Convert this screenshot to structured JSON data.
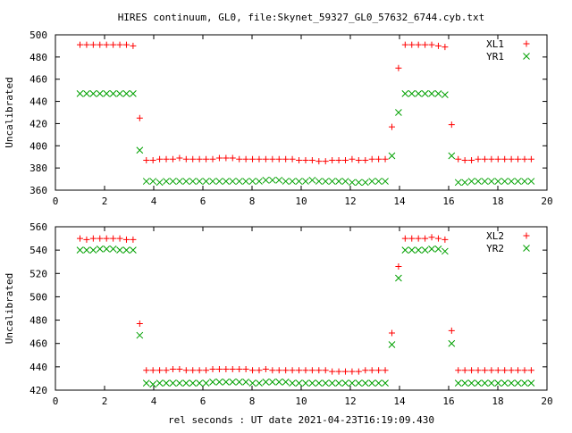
{
  "title": "HIRES continuum, GL0, file:Skynet_59327_GL0_57632_6744.cyb.txt",
  "xlabel": "rel seconds : UT date 2021-04-23T16:19:09.430",
  "chart_data": [
    {
      "type": "scatter",
      "ylabel": "Uncalibrated",
      "xlim": [
        0,
        20
      ],
      "ylim": [
        360,
        500
      ],
      "xticks": [
        0,
        2,
        4,
        6,
        8,
        10,
        12,
        14,
        16,
        18,
        20
      ],
      "yticks": [
        360,
        380,
        400,
        420,
        440,
        460,
        480,
        500
      ],
      "legend": "top-right",
      "x": [
        1.0,
        1.27,
        1.54,
        1.81,
        2.08,
        2.35,
        2.62,
        2.89,
        3.16,
        3.43,
        3.7,
        3.97,
        4.24,
        4.51,
        4.78,
        5.05,
        5.32,
        5.59,
        5.86,
        6.13,
        6.4,
        6.67,
        6.94,
        7.21,
        7.48,
        7.75,
        8.02,
        8.29,
        8.56,
        8.83,
        9.1,
        9.37,
        9.64,
        9.91,
        10.18,
        10.45,
        10.72,
        10.99,
        11.26,
        11.53,
        11.8,
        12.07,
        12.34,
        12.61,
        12.88,
        13.15,
        13.42,
        13.69,
        13.96,
        14.23,
        14.5,
        14.77,
        15.04,
        15.31,
        15.58,
        15.85,
        16.12,
        16.39,
        16.66,
        16.93,
        17.2,
        17.47,
        17.74,
        18.01,
        18.28,
        18.55,
        18.82,
        19.09,
        19.36
      ],
      "series": [
        {
          "name": "XL1",
          "color": "#ff0000",
          "marker": "plus",
          "values": [
            491,
            491,
            491,
            491,
            491,
            491,
            491,
            491,
            490,
            425,
            387,
            387,
            388,
            388,
            388,
            389,
            388,
            388,
            388,
            388,
            388,
            389,
            389,
            389,
            388,
            388,
            388,
            388,
            388,
            388,
            388,
            388,
            388,
            387,
            387,
            387,
            386,
            386,
            387,
            387,
            387,
            388,
            387,
            387,
            388,
            388,
            388,
            417,
            470,
            491,
            491,
            491,
            491,
            491,
            490,
            489,
            419,
            388,
            387,
            387,
            388,
            388,
            388,
            388,
            388,
            388,
            388,
            388,
            388
          ]
        },
        {
          "name": "YR1",
          "color": "#00a000",
          "marker": "cross",
          "values": [
            447,
            447,
            447,
            447,
            447,
            447,
            447,
            447,
            447,
            396,
            368,
            368,
            367,
            368,
            368,
            368,
            368,
            368,
            368,
            368,
            368,
            368,
            368,
            368,
            368,
            368,
            368,
            368,
            369,
            369,
            369,
            368,
            368,
            368,
            368,
            369,
            368,
            368,
            368,
            368,
            368,
            367,
            367,
            367,
            368,
            368,
            368,
            391,
            430,
            447,
            447,
            447,
            447,
            447,
            447,
            446,
            391,
            367,
            367,
            368,
            368,
            368,
            368,
            368,
            368,
            368,
            368,
            368,
            368
          ]
        }
      ]
    },
    {
      "type": "scatter",
      "ylabel": "Uncalibrated",
      "xlim": [
        0,
        20
      ],
      "ylim": [
        420,
        560
      ],
      "xticks": [
        0,
        2,
        4,
        6,
        8,
        10,
        12,
        14,
        16,
        18,
        20
      ],
      "yticks": [
        420,
        440,
        460,
        480,
        500,
        520,
        540,
        560
      ],
      "legend": "top-right",
      "x": [
        1.0,
        1.27,
        1.54,
        1.81,
        2.08,
        2.35,
        2.62,
        2.89,
        3.16,
        3.43,
        3.7,
        3.97,
        4.24,
        4.51,
        4.78,
        5.05,
        5.32,
        5.59,
        5.86,
        6.13,
        6.4,
        6.67,
        6.94,
        7.21,
        7.48,
        7.75,
        8.02,
        8.29,
        8.56,
        8.83,
        9.1,
        9.37,
        9.64,
        9.91,
        10.18,
        10.45,
        10.72,
        10.99,
        11.26,
        11.53,
        11.8,
        12.07,
        12.34,
        12.61,
        12.88,
        13.15,
        13.42,
        13.69,
        13.96,
        14.23,
        14.5,
        14.77,
        15.04,
        15.31,
        15.58,
        15.85,
        16.12,
        16.39,
        16.66,
        16.93,
        17.2,
        17.47,
        17.74,
        18.01,
        18.28,
        18.55,
        18.82,
        19.09,
        19.36
      ],
      "series": [
        {
          "name": "XL2",
          "color": "#ff0000",
          "marker": "plus",
          "values": [
            550,
            549,
            550,
            550,
            550,
            550,
            550,
            549,
            549,
            477,
            437,
            437,
            437,
            437,
            438,
            438,
            437,
            437,
            437,
            437,
            438,
            438,
            438,
            438,
            438,
            438,
            437,
            437,
            438,
            437,
            437,
            437,
            437,
            437,
            437,
            437,
            437,
            437,
            436,
            436,
            436,
            436,
            436,
            437,
            437,
            437,
            437,
            469,
            526,
            550,
            550,
            550,
            550,
            551,
            550,
            549,
            471,
            437,
            437,
            437,
            437,
            437,
            437,
            437,
            437,
            437,
            437,
            437,
            437
          ]
        },
        {
          "name": "YR2",
          "color": "#00a000",
          "marker": "cross",
          "values": [
            540,
            540,
            540,
            541,
            541,
            541,
            540,
            540,
            540,
            467,
            426,
            425,
            426,
            426,
            426,
            426,
            426,
            426,
            426,
            426,
            427,
            427,
            427,
            427,
            427,
            427,
            426,
            426,
            427,
            427,
            427,
            427,
            426,
            426,
            426,
            426,
            426,
            426,
            426,
            426,
            426,
            426,
            426,
            426,
            426,
            426,
            426,
            459,
            516,
            540,
            540,
            540,
            540,
            541,
            541,
            539,
            460,
            426,
            426,
            426,
            426,
            426,
            426,
            426,
            426,
            426,
            426,
            426,
            426
          ]
        }
      ]
    }
  ]
}
